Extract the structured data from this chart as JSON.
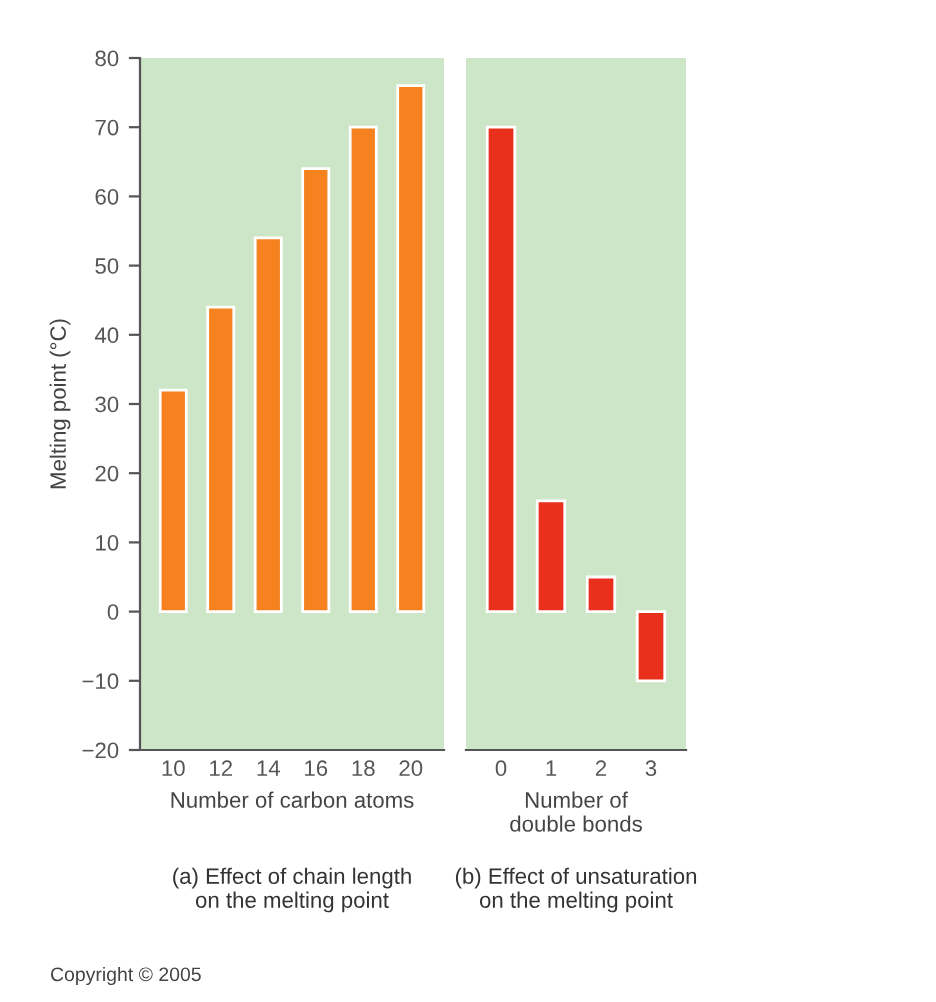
{
  "chart_data": [
    {
      "type": "bar",
      "ylabel": "Melting point (°C)",
      "xlabel": "Number of carbon atoms",
      "categories": [
        "10",
        "12",
        "14",
        "16",
        "18",
        "20"
      ],
      "values": [
        32,
        44,
        54,
        64,
        70,
        76
      ],
      "color": "#f5821f",
      "ylim": [
        -20,
        80
      ],
      "yticks": [
        -20,
        -10,
        0,
        10,
        20,
        30,
        40,
        50,
        60,
        70,
        80
      ],
      "grid": false,
      "annotations": [
        "(a) Effect of chain length\non the melting point",
        "Copyright © 2005"
      ]
    },
    {
      "type": "bar",
      "xlabel": "Number of\ndouble bonds",
      "categories": [
        "0",
        "1",
        "2",
        "3"
      ],
      "values": [
        70,
        16,
        5,
        -10
      ],
      "color": "#e8301c",
      "ylim": [
        -20,
        80
      ],
      "tick_labels": "x",
      "grid": false,
      "annotations": [
        "(b) Effect of unsaturation\non the melting point"
      ]
    }
  ]
}
